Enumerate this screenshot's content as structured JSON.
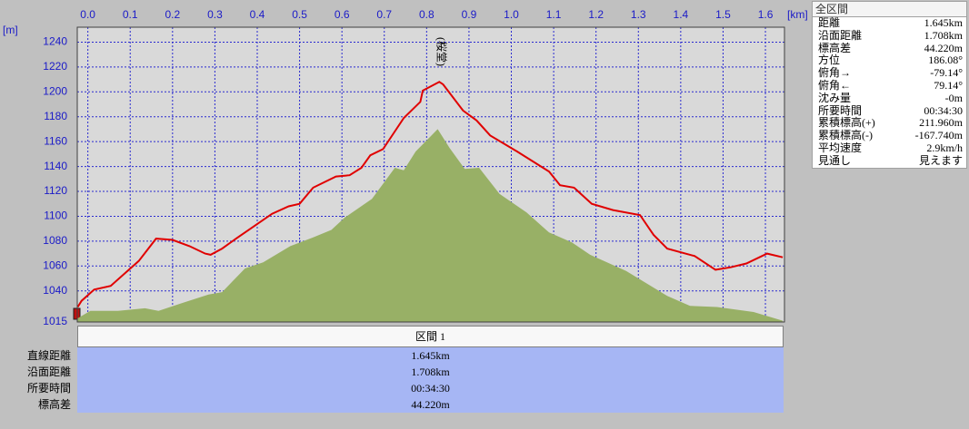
{
  "chart_data": {
    "type": "line",
    "x_label": "[km]",
    "y_label": "[m]",
    "annotation": "(桜堂)",
    "xlim": [
      -0.025,
      1.645
    ],
    "ylim": [
      1015,
      1252
    ],
    "xticks": [
      {
        "value": 0,
        "label": "0.0"
      },
      0.1,
      0.2,
      0.3,
      0.4,
      0.5,
      0.6,
      0.7,
      0.8,
      0.9,
      {
        "value": 1,
        "label": "1.0"
      },
      1.1,
      1.2,
      1.3,
      1.4,
      1.5,
      1.6
    ],
    "yticks": [
      1015,
      1040,
      1060,
      1080,
      1100,
      1120,
      1140,
      1160,
      1180,
      1200,
      1220,
      1240
    ],
    "grid": true,
    "series": [
      {
        "color": "#98b066",
        "fill": true,
        "x": [
          -0.024,
          0.006,
          0.071,
          0.135,
          0.167,
          0.221,
          0.285,
          0.317,
          0.371,
          0.414,
          0.478,
          0.532,
          0.575,
          0.607,
          0.671,
          0.725,
          0.746,
          0.774,
          0.826,
          0.854,
          0.89,
          0.924,
          0.972,
          1.036,
          1.089,
          1.143,
          1.186,
          1.271,
          1.368,
          1.422,
          1.486,
          1.572,
          1.641
        ],
        "values": [
          1018,
          1024,
          1024,
          1026,
          1024,
          1030,
          1037,
          1039,
          1058,
          1063,
          1076,
          1083,
          1089,
          1099,
          1114,
          1139,
          1137,
          1152,
          1170,
          1155,
          1138,
          1139,
          1118,
          1103,
          1087,
          1079,
          1069,
          1056,
          1036,
          1028,
          1027,
          1023,
          1016
        ]
      },
      {
        "color": "#e00000",
        "fill": false,
        "x": [
          -0.024,
          -0.015,
          0.015,
          0.054,
          0.12,
          0.161,
          0.2,
          0.24,
          0.277,
          0.29,
          0.317,
          0.35,
          0.435,
          0.474,
          0.5,
          0.532,
          0.586,
          0.618,
          0.646,
          0.667,
          0.697,
          0.746,
          0.785,
          0.791,
          0.83,
          0.839,
          0.886,
          0.918,
          0.95,
          1.014,
          1.089,
          1.115,
          1.148,
          1.19,
          1.24,
          1.304,
          1.336,
          1.368,
          1.433,
          1.482,
          1.518,
          1.555,
          1.604,
          1.641
        ],
        "values": [
          1027,
          1032,
          1041,
          1044,
          1064,
          1082,
          1081,
          1076,
          1070,
          1069,
          1074,
          1082,
          1102,
          1108,
          1110,
          1123,
          1132,
          1133,
          1139,
          1149,
          1154,
          1179,
          1192,
          1201,
          1208,
          1206,
          1185,
          1177,
          1165,
          1152,
          1136,
          1125,
          1123,
          1110,
          1105,
          1101,
          1085,
          1074,
          1068,
          1057,
          1059,
          1062,
          1070,
          1067
        ]
      }
    ]
  },
  "summary": {
    "title": "全区間",
    "rows": [
      [
        "距離",
        "1.645km"
      ],
      [
        "沿面距離",
        "1.708km"
      ],
      [
        "標高差",
        "44.220m"
      ],
      [
        "方位",
        "186.08°"
      ],
      [
        "俯角→",
        "-79.14°"
      ],
      [
        "俯角←",
        "79.14°"
      ],
      [
        "沈み量",
        "-0m"
      ],
      [
        "所要時間",
        "00:34:30"
      ],
      [
        "累積標高(+)",
        "211.960m"
      ],
      [
        "累積標高(-)",
        "-167.740m"
      ],
      [
        "平均速度",
        "2.9km/h"
      ],
      [
        "見通し",
        "見えます"
      ]
    ]
  },
  "section": {
    "header": "区間 1",
    "rows": [
      [
        "直線距離",
        "1.645km"
      ],
      [
        "沿面距離",
        "1.708km"
      ],
      [
        "所要時間",
        "00:34:30"
      ],
      [
        "標高差",
        "44.220m"
      ]
    ]
  }
}
